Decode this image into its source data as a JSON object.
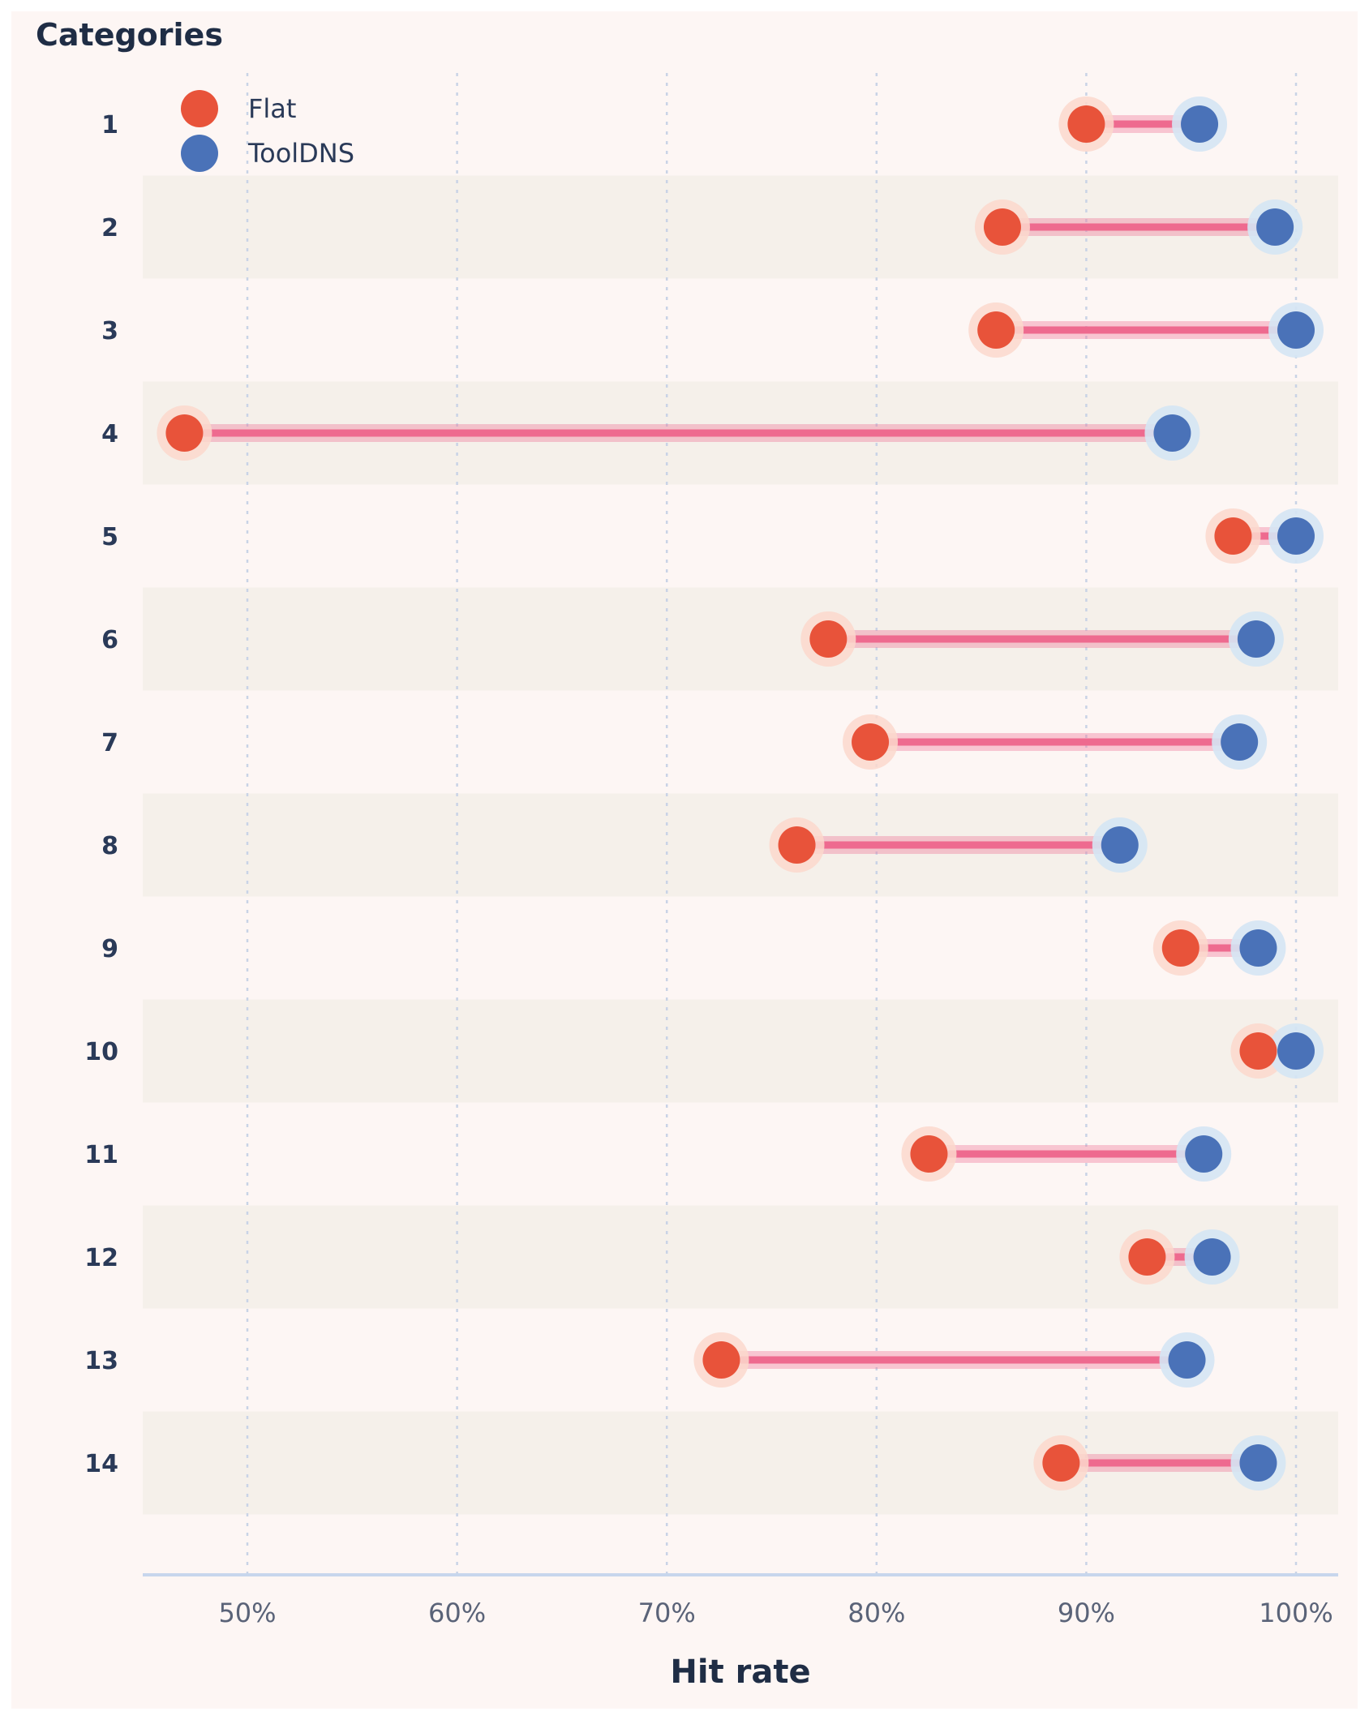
{
  "chart_data": {
    "type": "dumbbell",
    "ylabel": "Categories",
    "xlabel": "Hit rate",
    "xlim": [
      45,
      102
    ],
    "x_ticks": [
      {
        "value": 50,
        "label": "50%"
      },
      {
        "value": 60,
        "label": "60%"
      },
      {
        "value": 70,
        "label": "70%"
      },
      {
        "value": 80,
        "label": "80%"
      },
      {
        "value": 90,
        "label": "90%"
      },
      {
        "value": 100,
        "label": "100%"
      }
    ],
    "grid": "vertical dotted",
    "legend_position": "top-left",
    "categories": [
      "1",
      "2",
      "3",
      "4",
      "5",
      "6",
      "7",
      "8",
      "9",
      "10",
      "11",
      "12",
      "13",
      "14"
    ],
    "series": [
      {
        "name": "Flat",
        "color": "#e8533a",
        "values": [
          90.0,
          86.0,
          85.7,
          47.0,
          97.0,
          77.7,
          79.7,
          76.2,
          94.5,
          98.2,
          82.5,
          92.9,
          72.6,
          88.8
        ]
      },
      {
        "name": "ToolDNS",
        "color": "#4a72b8",
        "values": [
          95.4,
          99.0,
          100.0,
          94.1,
          100.0,
          98.1,
          97.3,
          91.6,
          98.2,
          100.0,
          95.6,
          96.0,
          94.8,
          98.2
        ]
      }
    ],
    "connector_color": "#ee6a8f",
    "band_color": "#f5f0ea"
  }
}
